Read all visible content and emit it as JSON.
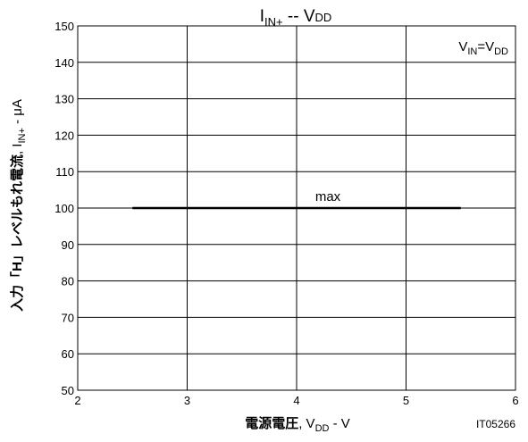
{
  "chart_data": {
    "type": "line",
    "title_parts": {
      "main": "I",
      "sub": "IN+",
      "sep": " -- ",
      "vmain": "V",
      "vsub": "DD"
    },
    "condition_parts": {
      "main": "V",
      "sub": "IN",
      "eq": "=V",
      "sub2": "DD"
    },
    "xlabel_parts": {
      "jp": "電源電圧",
      "comma": ", V",
      "sub": "DD",
      "unit": " - V"
    },
    "ylabel_parts": {
      "jp": "入力「H」レベルもれ電流",
      "comma": ", I",
      "sub": "IN+",
      "unit": " - μA"
    },
    "figure_id": "IT05266",
    "xlim": [
      2,
      6
    ],
    "ylim": [
      50,
      150
    ],
    "x_ticks": [
      2,
      3,
      4,
      5,
      6
    ],
    "y_ticks": [
      50,
      60,
      70,
      80,
      90,
      100,
      110,
      120,
      130,
      140,
      150
    ],
    "grid": true,
    "series": [
      {
        "name": "max",
        "x": [
          2.5,
          5.5
        ],
        "y": [
          100,
          100
        ]
      }
    ]
  }
}
